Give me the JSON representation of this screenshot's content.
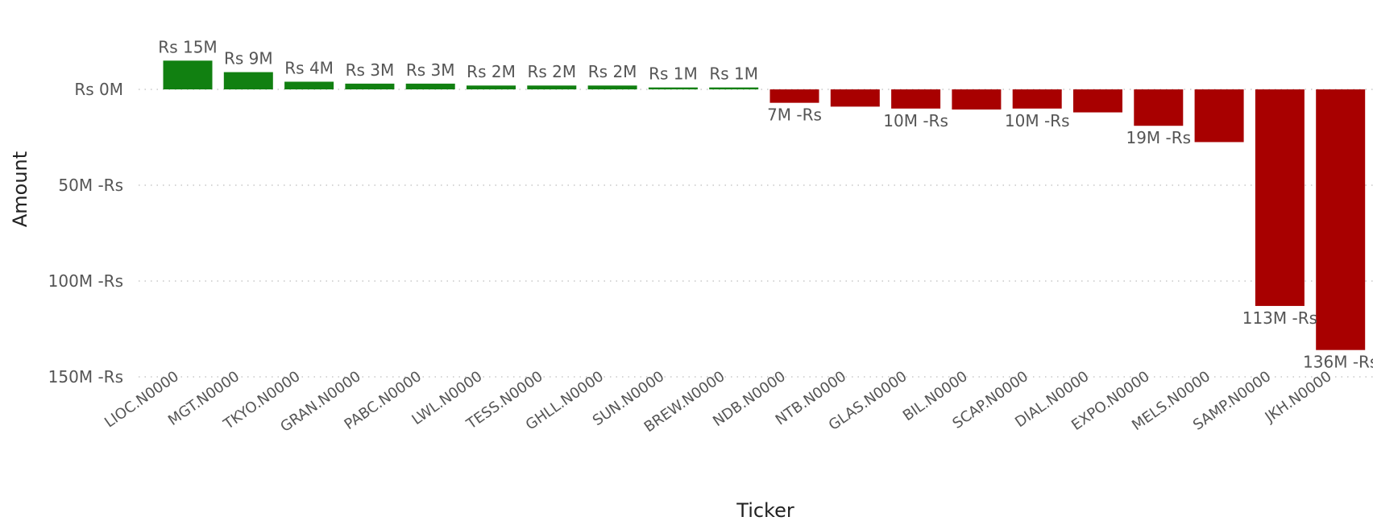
{
  "chart_data": {
    "type": "bar",
    "title": "",
    "xlabel": "Ticker",
    "ylabel": "Amount",
    "ylim": [
      -150,
      15
    ],
    "yticks": [
      {
        "value": 0,
        "label": "Rs 0M"
      },
      {
        "value": -50,
        "label": "50M -Rs"
      },
      {
        "value": -100,
        "label": "100M -Rs"
      },
      {
        "value": -150,
        "label": "150M -Rs"
      }
    ],
    "grid": true,
    "categories": [
      "LIOC.N0000",
      "MGT.N0000",
      "TKYO.N0000",
      "GRAN.N0000",
      "PABC.N0000",
      "LWL.N0000",
      "TESS.N0000",
      "GHLL.N0000",
      "SUN.N0000",
      "BREW.N0000",
      "NDB.N0000",
      "NTB.N0000",
      "GLAS.N0000",
      "BIL.N0000",
      "SCAP.N0000",
      "DIAL.N0000",
      "EXPO.N0000",
      "MELS.N0000",
      "SAMP.N0000",
      "JKH.N0000"
    ],
    "values": [
      15,
      9,
      4,
      3,
      3,
      2,
      2,
      2,
      1,
      1,
      -7,
      -9,
      -10,
      -10.5,
      -10,
      -12,
      -19,
      -27.5,
      -113,
      -136
    ],
    "data_labels": [
      "Rs 15M",
      "Rs 9M",
      "Rs 4M",
      "Rs 3M",
      "Rs 3M",
      "Rs 2M",
      "Rs 2M",
      "Rs 2M",
      "Rs 1M",
      "Rs 1M",
      "7M -Rs",
      "",
      "10M -Rs",
      "",
      "10M -Rs",
      "",
      "19M -Rs",
      "",
      "113M -Rs",
      "136M -Rs"
    ],
    "colors": {
      "positive": "#118011",
      "negative": "#a80000"
    }
  }
}
